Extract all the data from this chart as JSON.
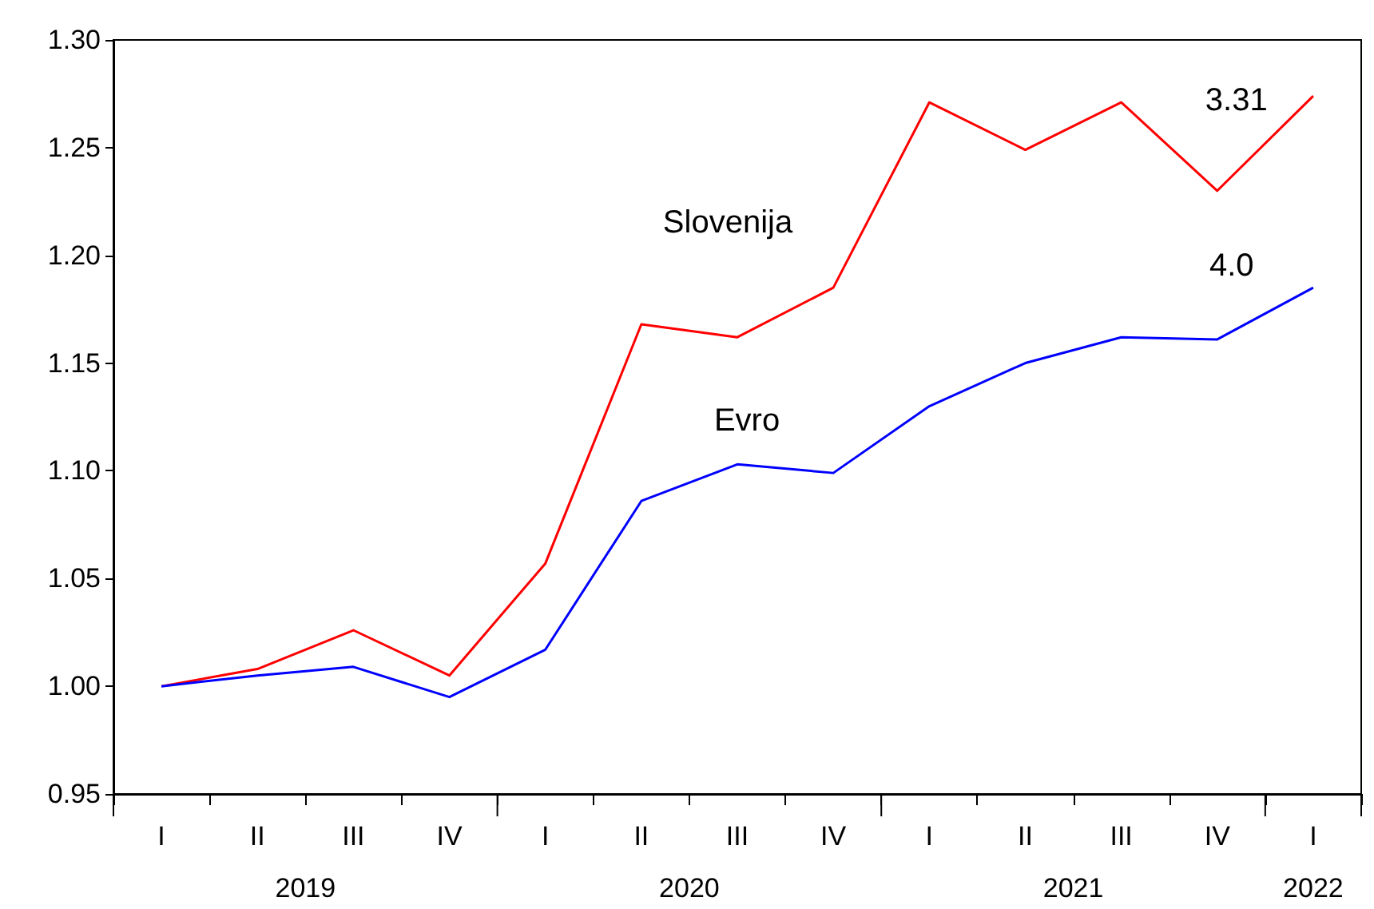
{
  "chart_data": {
    "type": "line",
    "categories": [
      "I",
      "II",
      "III",
      "IV",
      "I",
      "II",
      "III",
      "IV",
      "I",
      "II",
      "III",
      "IV",
      "I"
    ],
    "series": [
      {
        "name": "Slovenija",
        "color": "#ff0000",
        "values": [
          1.0,
          1.008,
          1.026,
          1.005,
          1.057,
          1.168,
          1.162,
          1.185,
          1.271,
          1.249,
          1.271,
          1.23,
          1.274
        ]
      },
      {
        "name": "Evro",
        "color": "#0000ff",
        "values": [
          1.0,
          1.005,
          1.009,
          0.995,
          1.017,
          1.086,
          1.103,
          1.099,
          1.13,
          1.15,
          1.162,
          1.161,
          1.185
        ]
      }
    ],
    "ylim": [
      0.95,
      1.3
    ],
    "yticks": [
      0.95,
      {
        "value": 1.0,
        "label": "1.00"
      },
      1.05,
      {
        "value": 1.1,
        "label": "1.10"
      },
      1.15,
      {
        "value": 1.2,
        "label": "1.20"
      },
      1.25,
      {
        "value": 1.3,
        "label": "1.30"
      }
    ],
    "annotations": [
      "3.31",
      "4.0",
      "2019",
      "2020",
      "2021",
      "2022"
    ],
    "grid": false,
    "legend": false,
    "marker": "none",
    "line_style": "solid"
  }
}
